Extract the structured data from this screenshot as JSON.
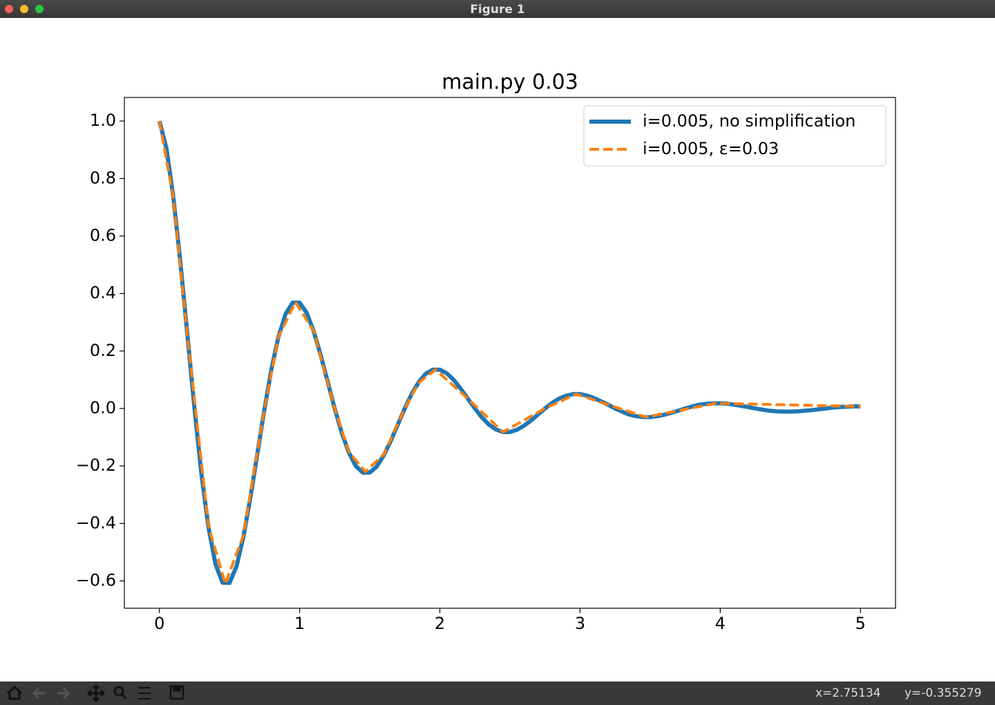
{
  "window": {
    "title": "Figure 1"
  },
  "chart_data": {
    "type": "line",
    "title": "main.py 0.03",
    "xlim": [
      -0.25,
      5.25
    ],
    "ylim": [
      -0.695,
      1.082
    ],
    "xticks": [
      0,
      1,
      2,
      3,
      4,
      5
    ],
    "yticks": [
      {
        "value": -0.6,
        "label": "−0.6"
      },
      {
        "value": -0.4,
        "label": "−0.4"
      },
      {
        "value": -0.2,
        "label": "−0.2"
      },
      {
        "value": 0,
        "label": "0.0"
      },
      0.2,
      0.4,
      0.6,
      0.8,
      {
        "value": 1,
        "label": "1.0"
      }
    ],
    "grid": false,
    "legend": "upper right",
    "series": [
      {
        "name": "i=0.005, no simplification",
        "color": "#1f77b4",
        "style": "solid",
        "x": [
          0,
          0.05,
          0.1,
          0.15,
          0.2,
          0.25,
          0.3,
          0.35,
          0.4,
          0.45,
          0.5,
          0.55,
          0.6,
          0.65,
          0.7,
          0.75,
          0.8,
          0.85,
          0.9,
          0.95,
          1,
          1.05,
          1.1,
          1.15,
          1.2,
          1.25,
          1.3,
          1.35,
          1.4,
          1.45,
          1.5,
          1.55,
          1.6,
          1.65,
          1.7,
          1.75,
          1.8,
          1.85,
          1.9,
          1.95,
          2,
          2.05,
          2.1,
          2.15,
          2.2,
          2.25,
          2.3,
          2.35,
          2.4,
          2.45,
          2.5,
          2.55,
          2.6,
          2.65,
          2.7,
          2.75,
          2.8,
          2.85,
          2.9,
          2.95,
          3,
          3.05,
          3.1,
          3.15,
          3.2,
          3.25,
          3.3,
          3.35,
          3.4,
          3.45,
          3.5,
          3.55,
          3.6,
          3.65,
          3.7,
          3.75,
          3.8,
          3.85,
          3.9,
          3.95,
          4,
          4.05,
          4.1,
          4.15,
          4.2,
          4.25,
          4.3,
          4.35,
          4.4,
          4.45,
          4.5,
          4.55,
          4.6,
          4.65,
          4.7,
          4.75,
          4.8,
          4.85,
          4.9,
          4.95,
          5
        ],
        "values": [
          1,
          0.905,
          0.732,
          0.506,
          0.253,
          0,
          -0.229,
          -0.414,
          -0.542,
          -0.606,
          -0.607,
          -0.549,
          -0.444,
          -0.307,
          -0.153,
          0,
          0.139,
          0.251,
          0.329,
          0.368,
          0.368,
          0.333,
          0.269,
          0.186,
          0.093,
          0,
          -0.084,
          -0.152,
          -0.2,
          -0.223,
          -0.223,
          -0.202,
          -0.163,
          -0.113,
          -0.056,
          0,
          0.051,
          0.092,
          0.121,
          0.135,
          0.135,
          0.122,
          0.099,
          0.068,
          0.034,
          0,
          -0.031,
          -0.056,
          -0.073,
          -0.082,
          -0.082,
          -0.074,
          -0.06,
          -0.042,
          -0.021,
          0,
          0.019,
          0.034,
          0.044,
          0.05,
          0.05,
          0.045,
          0.036,
          0.025,
          0.013,
          0,
          -0.011,
          -0.021,
          -0.027,
          -0.03,
          -0.03,
          -0.027,
          -0.022,
          -0.015,
          -0.008,
          0,
          0.007,
          0.013,
          0.016,
          0.018,
          0.018,
          0.017,
          0.013,
          0.009,
          0.005,
          0,
          -0.004,
          -0.008,
          -0.01,
          -0.011,
          -0.011,
          -0.01,
          -0.008,
          -0.006,
          -0.003,
          0,
          0.003,
          0.005,
          0.006,
          0.007,
          0.007
        ]
      },
      {
        "name": "i=0.005, ε=0.03",
        "color": "#ff7f0e",
        "style": "dashed",
        "x": [
          0,
          0.1,
          0.2,
          0.35,
          0.47,
          0.6,
          0.75,
          0.85,
          0.97,
          1.1,
          1.25,
          1.35,
          1.47,
          1.6,
          1.75,
          1.85,
          1.97,
          2.2,
          2.45,
          2.75,
          2.97,
          3.47,
          3.97,
          5
        ],
        "values": [
          1,
          0.73,
          0.25,
          -0.41,
          -0.61,
          -0.44,
          0,
          0.25,
          0.37,
          0.27,
          0,
          -0.15,
          -0.22,
          -0.16,
          0,
          0.09,
          0.135,
          0.034,
          -0.082,
          0,
          0.05,
          -0.03,
          0.018,
          0.007
        ]
      }
    ]
  },
  "status": {
    "x": "x=2.75134",
    "y": "y=-0.355279"
  }
}
